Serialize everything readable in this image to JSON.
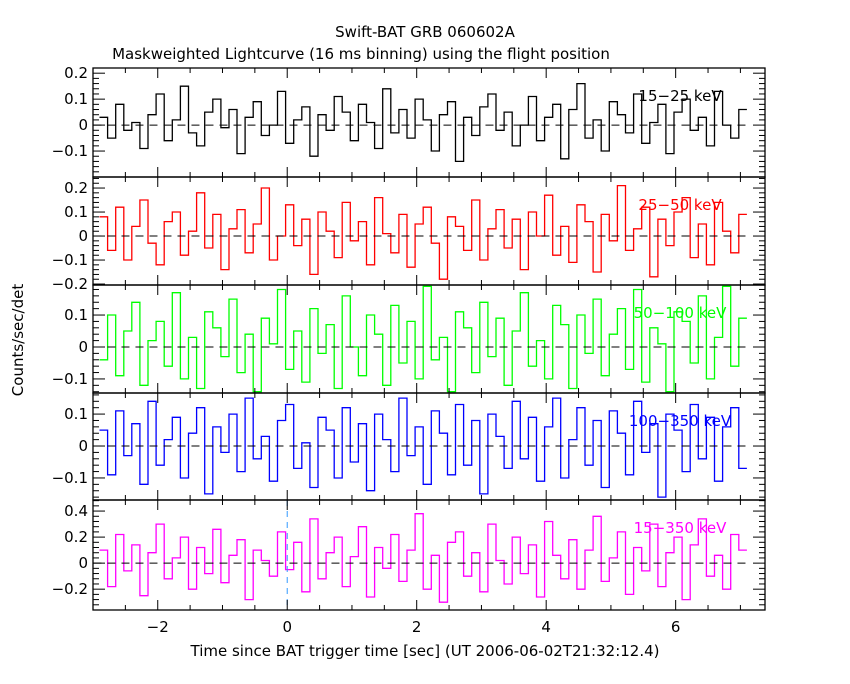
{
  "chart_data": {
    "type": "line",
    "title": "Swift-BAT GRB 060602A",
    "subtitle": "Maskweighted Lightcurve (16 ms binning) using the flight position",
    "xlabel": "Time since BAT trigger time [sec] (UT 2006-06-02T21:32:12.4)",
    "ylabel": "Counts/sec/det",
    "xlim": [
      -3.0,
      7.38
    ],
    "x_ticks": [
      -2,
      0,
      2,
      4,
      6
    ],
    "x_tick_labels": [
      "−2",
      "0",
      "2",
      "4",
      "6"
    ],
    "x_start": -2.9,
    "bin_width": 0.125,
    "trigger_marker_color": "#3399ff",
    "panels": [
      {
        "name": "15-25 keV",
        "label": "15−25 keV",
        "color": "#000000",
        "ylim": [
          -0.2,
          0.22
        ],
        "yticks": [
          -0.1,
          0,
          0.1,
          0.2
        ],
        "ytick_labels": [
          "−0.1",
          "0",
          "0.1",
          "0.2"
        ],
        "values": [
          0.03,
          -0.05,
          0.08,
          -0.02,
          0.01,
          -0.09,
          0.04,
          0.12,
          -0.06,
          0.02,
          0.15,
          -0.03,
          -0.08,
          0.05,
          0.1,
          -0.01,
          0.06,
          -0.11,
          0.03,
          0.09,
          -0.04,
          0.0,
          0.13,
          -0.07,
          0.02,
          0.07,
          -0.12,
          0.04,
          -0.02,
          0.11,
          0.05,
          -0.06,
          0.08,
          0.01,
          -0.09,
          0.14,
          -0.03,
          0.06,
          -0.05,
          0.1,
          0.02,
          -0.1,
          0.04,
          0.09,
          -0.14,
          0.03,
          -0.04,
          0.07,
          0.12,
          -0.02,
          0.05,
          -0.08,
          0.0,
          0.11,
          -0.06,
          0.03,
          0.08,
          -0.13,
          0.06,
          0.16,
          -0.05,
          0.02,
          -0.1,
          0.09,
          0.04,
          -0.03,
          0.12,
          -0.07,
          0.01,
          0.08,
          -0.11,
          0.05,
          0.1,
          -0.02,
          0.03,
          -0.08,
          0.13,
          0.0,
          -0.05,
          0.06
        ]
      },
      {
        "name": "25-50 keV",
        "label": "25−50 keV",
        "color": "#ff0000",
        "ylim": [
          -0.204,
          0.246
        ],
        "yticks": [
          -0.2,
          -0.1,
          0,
          0.1,
          0.2
        ],
        "ytick_labels": [
          "−0.2",
          "−0.1",
          "0",
          "0.1",
          "0.2"
        ],
        "values": [
          0.08,
          -0.06,
          0.12,
          -0.1,
          0.04,
          0.15,
          -0.03,
          -0.12,
          0.06,
          0.1,
          -0.08,
          0.02,
          0.18,
          -0.05,
          0.09,
          -0.14,
          0.03,
          0.11,
          -0.07,
          0.05,
          0.2,
          -0.1,
          0.0,
          0.13,
          -0.04,
          0.07,
          -0.16,
          0.1,
          0.02,
          -0.09,
          0.14,
          -0.02,
          0.06,
          -0.12,
          0.16,
          0.01,
          -0.07,
          0.09,
          -0.13,
          0.05,
          0.12,
          -0.03,
          -0.18,
          0.08,
          0.04,
          -0.06,
          0.15,
          -0.1,
          0.03,
          0.11,
          -0.05,
          0.07,
          -0.14,
          0.1,
          0.0,
          0.17,
          -0.08,
          0.04,
          -0.11,
          0.13,
          0.06,
          -0.15,
          0.09,
          -0.02,
          0.21,
          -0.06,
          0.03,
          0.12,
          -0.17,
          0.07,
          -0.04,
          0.1,
          0.16,
          -0.09,
          0.05,
          -0.12,
          0.14,
          0.02,
          -0.07,
          0.09
        ]
      },
      {
        "name": "50-100 keV",
        "label": "50−100 keV",
        "color": "#00ff00",
        "ylim": [
          -0.144,
          0.194
        ],
        "yticks": [
          -0.1,
          0,
          0.1
        ],
        "ytick_labels": [
          "−0.1",
          "0",
          "0.1"
        ],
        "values": [
          -0.04,
          0.1,
          -0.09,
          0.05,
          0.14,
          -0.12,
          0.02,
          0.08,
          -0.06,
          0.17,
          -0.1,
          0.03,
          -0.13,
          0.11,
          0.06,
          -0.03,
          0.15,
          -0.08,
          0.04,
          -0.14,
          0.09,
          0.01,
          0.18,
          -0.07,
          0.05,
          -0.11,
          0.12,
          -0.02,
          0.07,
          -0.13,
          0.16,
          0.0,
          -0.09,
          0.1,
          0.04,
          -0.12,
          0.13,
          -0.05,
          0.08,
          -0.1,
          0.19,
          -0.04,
          0.03,
          -0.14,
          0.11,
          0.06,
          -0.08,
          0.14,
          -0.03,
          0.09,
          -0.12,
          0.05,
          0.17,
          -0.06,
          0.02,
          -0.1,
          0.13,
          0.07,
          -0.13,
          0.1,
          -0.02,
          0.15,
          -0.09,
          0.04,
          0.12,
          -0.07,
          0.18,
          -0.11,
          0.06,
          0.01,
          -0.14,
          0.11,
          0.08,
          -0.05,
          0.16,
          -0.1,
          0.03,
          0.19,
          -0.06,
          0.09
        ]
      },
      {
        "name": "100-350 keV",
        "label": "100−350 keV",
        "color": "#0000ff",
        "ylim": [
          -0.169,
          0.166
        ],
        "yticks": [
          -0.1,
          0,
          0.1
        ],
        "ytick_labels": [
          "−0.1",
          "0",
          "0.1"
        ],
        "values": [
          0.05,
          -0.09,
          0.11,
          -0.03,
          0.07,
          -0.12,
          0.14,
          -0.06,
          0.02,
          0.09,
          -0.1,
          0.04,
          0.12,
          -0.15,
          0.06,
          -0.02,
          0.1,
          -0.08,
          0.15,
          -0.04,
          0.03,
          -0.11,
          0.08,
          0.13,
          -0.07,
          0.01,
          -0.13,
          0.09,
          0.05,
          -0.1,
          0.12,
          -0.05,
          0.07,
          -0.14,
          0.1,
          0.02,
          -0.08,
          0.15,
          -0.03,
          0.06,
          -0.12,
          0.11,
          0.04,
          -0.09,
          0.13,
          -0.06,
          0.08,
          -0.15,
          0.1,
          0.03,
          -0.07,
          0.14,
          -0.04,
          0.09,
          -0.11,
          0.06,
          0.15,
          -0.1,
          0.02,
          0.12,
          -0.06,
          0.08,
          -0.13,
          0.11,
          0.04,
          -0.09,
          0.14,
          -0.02,
          0.07,
          -0.16,
          0.1,
          0.05,
          -0.08,
          0.13,
          -0.04,
          0.09,
          -0.11,
          0.06,
          0.12,
          -0.07
        ]
      },
      {
        "name": "15-350 keV",
        "label": "15−350 keV",
        "color": "#ff00ff",
        "ylim": [
          -0.36,
          0.485
        ],
        "yticks": [
          -0.2,
          0,
          0.2,
          0.4
        ],
        "ytick_labels": [
          "−0.2",
          "0",
          "0.2",
          "0.4"
        ],
        "values": [
          0.1,
          -0.18,
          0.22,
          -0.06,
          0.14,
          -0.25,
          0.08,
          0.3,
          -0.12,
          0.04,
          0.2,
          -0.2,
          0.12,
          -0.08,
          0.26,
          -0.15,
          0.06,
          0.18,
          -0.28,
          0.1,
          0.02,
          -0.1,
          0.24,
          -0.05,
          0.16,
          -0.22,
          0.34,
          -0.12,
          0.08,
          0.2,
          -0.18,
          0.05,
          0.28,
          -0.26,
          0.12,
          -0.04,
          0.22,
          -0.14,
          0.1,
          0.38,
          -0.2,
          0.06,
          -0.3,
          0.16,
          0.24,
          -0.1,
          0.08,
          -0.22,
          0.3,
          0.02,
          -0.16,
          0.2,
          -0.08,
          0.14,
          -0.26,
          0.32,
          0.06,
          -0.12,
          0.18,
          -0.2,
          0.1,
          0.36,
          -0.14,
          0.04,
          0.24,
          -0.24,
          0.12,
          -0.06,
          0.3,
          -0.18,
          0.08,
          0.2,
          -0.28,
          0.14,
          0.34,
          -0.1,
          0.06,
          -0.2,
          0.22,
          0.1
        ]
      }
    ]
  }
}
